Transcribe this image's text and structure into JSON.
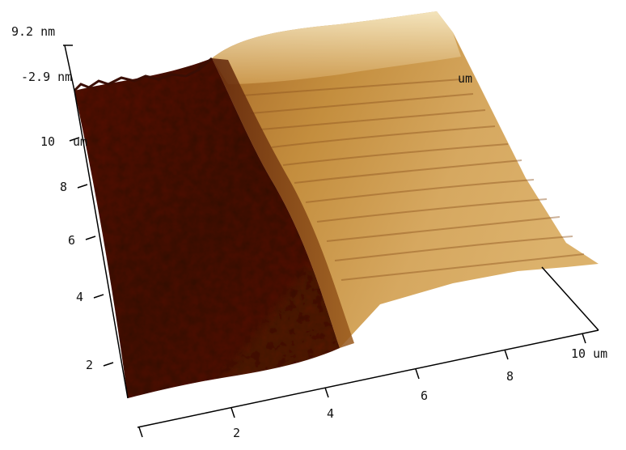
{
  "z_axis": {
    "top": "9.2 nm",
    "bottom": "-2.9 nm",
    "unit": "nm"
  },
  "left_axis": {
    "ticks": [
      "2",
      "4",
      "6",
      "8",
      "10"
    ],
    "unit_label": "um"
  },
  "bottom_axis": {
    "ticks": [
      "2",
      "4",
      "6",
      "8",
      "10 um"
    ]
  },
  "back_axis": {
    "unit_label": "um"
  },
  "colors": {
    "low": "#4a1508",
    "mid": "#8a4a14",
    "high": "#c8943a",
    "peak": "#f4e0b0",
    "axis": "#000000"
  }
}
